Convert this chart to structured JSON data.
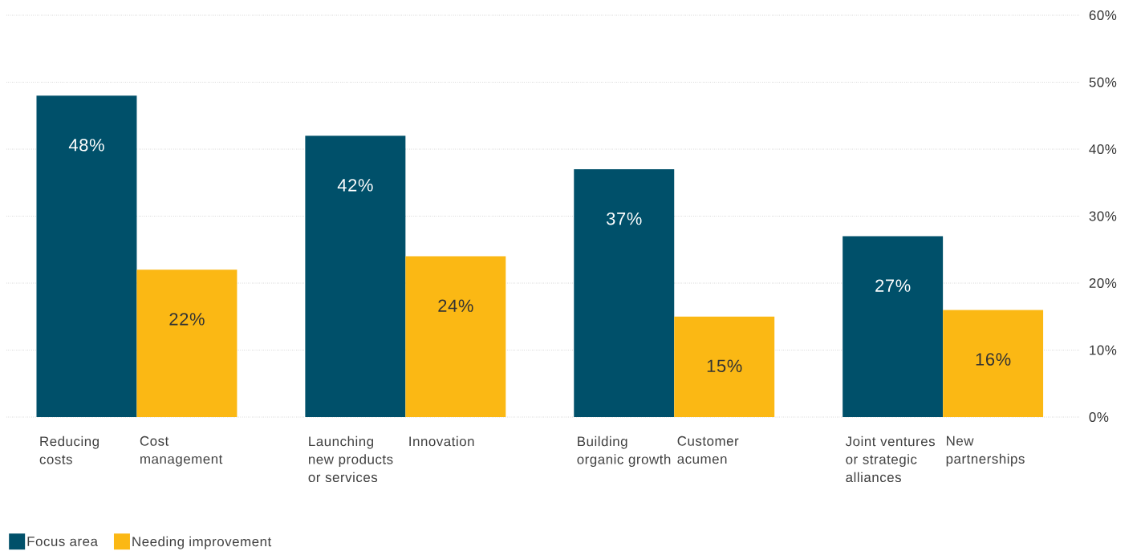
{
  "chart_data": {
    "type": "bar",
    "categories": [
      "Reducing costs",
      "Cost management",
      "Launching new products or services",
      "Innovation",
      "Building organic growth",
      "Customer acumen",
      "Joint ventures or strategic alliances",
      "New partnerships"
    ],
    "series": [
      {
        "name": "Focus area",
        "color": "#00506a",
        "values": [
          48,
          null,
          42,
          null,
          37,
          null,
          27,
          null
        ],
        "value_labels": [
          "48%",
          null,
          "42%",
          null,
          "37%",
          null,
          "27%",
          null
        ]
      },
      {
        "name": "Needing improvement",
        "color": "#fbb814",
        "values": [
          null,
          22,
          null,
          24,
          null,
          15,
          null,
          16
        ],
        "value_labels": [
          null,
          "22%",
          null,
          "24%",
          null,
          "15%",
          null,
          "16%"
        ]
      }
    ],
    "ylim": [
      0,
      60
    ],
    "yticks": [
      {
        "value": 0,
        "label": "0%"
      },
      {
        "value": 10,
        "label": "10%"
      },
      {
        "value": 20,
        "label": "20%"
      },
      {
        "value": 30,
        "label": "30%"
      },
      {
        "value": 40,
        "label": "40%"
      },
      {
        "value": 50,
        "label": "50%"
      },
      {
        "value": 60,
        "label": "60%"
      }
    ],
    "grid": "y",
    "legend": "bottom left"
  }
}
